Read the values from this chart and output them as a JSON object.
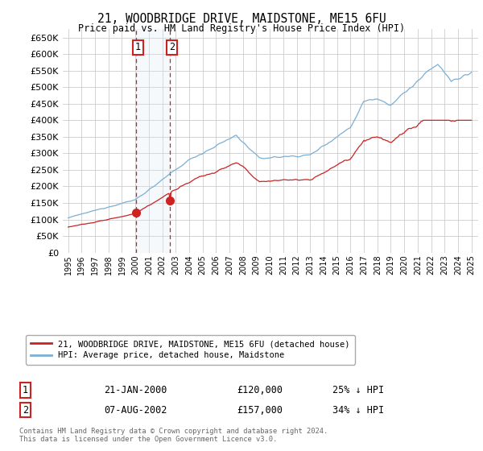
{
  "title": "21, WOODBRIDGE DRIVE, MAIDSTONE, ME15 6FU",
  "subtitle": "Price paid vs. HM Land Registry's House Price Index (HPI)",
  "ylim": [
    0,
    675000
  ],
  "yticks": [
    0,
    50000,
    100000,
    150000,
    200000,
    250000,
    300000,
    350000,
    400000,
    450000,
    500000,
    550000,
    600000,
    650000
  ],
  "hpi_color": "#7bafd4",
  "price_color": "#cc2222",
  "background_color": "#ffffff",
  "grid_color": "#cccccc",
  "annotation_fill": "#dce8f5",
  "annotation_border": "#cc2222",
  "transaction1_year": 2000.055,
  "transaction1_price": 120000,
  "transaction2_year": 2002.59,
  "transaction2_price": 157000,
  "legend_label1": "21, WOODBRIDGE DRIVE, MAIDSTONE, ME15 6FU (detached house)",
  "legend_label2": "HPI: Average price, detached house, Maidstone",
  "table_rows": [
    [
      "1",
      "21-JAN-2000",
      "£120,000",
      "25% ↓ HPI"
    ],
    [
      "2",
      "07-AUG-2002",
      "£157,000",
      "34% ↓ HPI"
    ]
  ],
  "footnote": "Contains HM Land Registry data © Crown copyright and database right 2024.\nThis data is licensed under the Open Government Licence v3.0."
}
